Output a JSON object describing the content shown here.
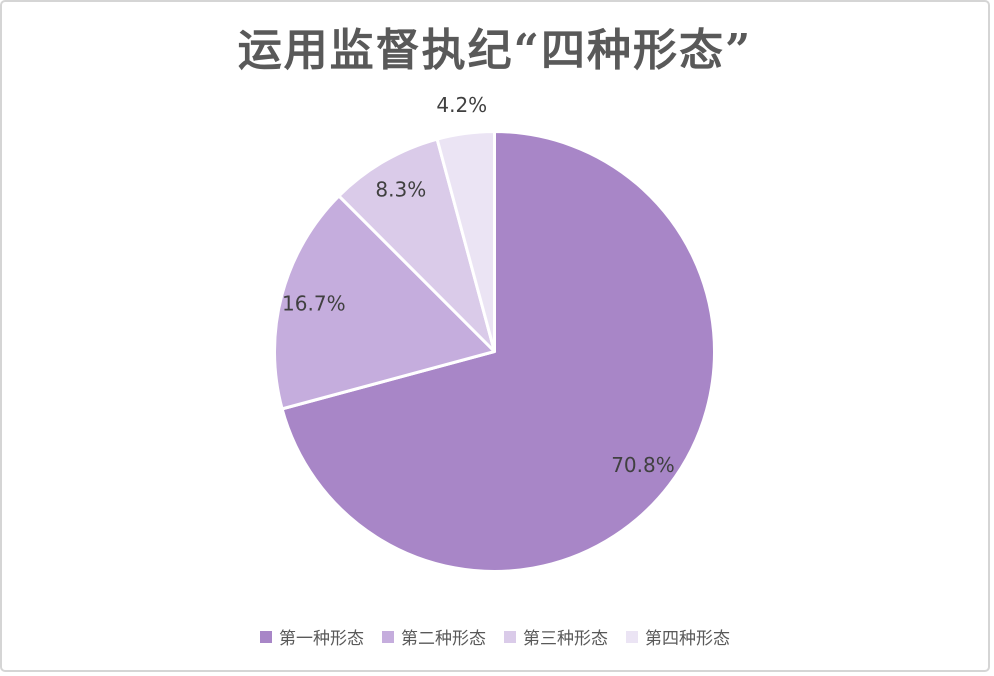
{
  "chart_data": {
    "type": "pie",
    "title": "运用监督执纪“四种形态”",
    "categories": [
      "第一种形态",
      "第二种形态",
      "第三种形态",
      "第四种形态"
    ],
    "values": [
      70.8,
      16.7,
      8.3,
      4.2
    ],
    "labels": [
      "70.8%",
      "16.7%",
      "8.3%",
      "4.2%"
    ],
    "colors": [
      "#a886c7",
      "#c5addd",
      "#dacbe9",
      "#ebe4f4"
    ],
    "slice_border_color": "#ffffff",
    "label_color": "#404040",
    "title_color": "#595959",
    "start_angle_deg": 0,
    "direction": "clockwise",
    "legend_position": "bottom"
  }
}
